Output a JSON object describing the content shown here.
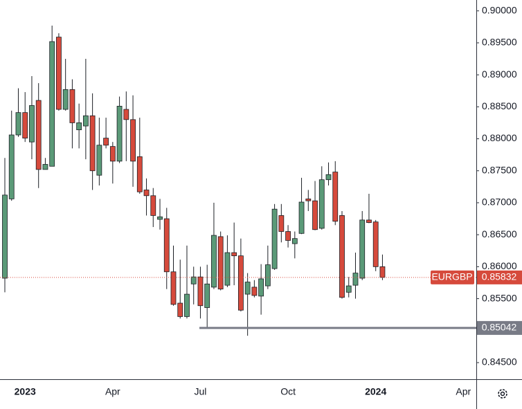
{
  "chart_data": {
    "type": "candlestick",
    "symbol": "EURGBP",
    "categories": [
      null,
      null,
      null,
      "2023",
      null,
      null,
      null,
      null,
      null,
      null,
      null,
      null,
      null,
      null,
      null,
      null,
      "Apr",
      null,
      null,
      null,
      null,
      null,
      null,
      null,
      null,
      null,
      null,
      null,
      null,
      "Jul",
      null,
      null,
      null,
      null,
      null,
      null,
      null,
      null,
      null,
      null,
      null,
      null,
      "Oct",
      null,
      null,
      null,
      null,
      null,
      null,
      null,
      null,
      null,
      null,
      null,
      null,
      "2024",
      null,
      null,
      null,
      null,
      null,
      null,
      null,
      null,
      null,
      null,
      null,
      null,
      "Apr",
      null
    ],
    "open": [
      0.8582,
      0.8706,
      0.8806,
      0.8841,
      0.8795,
      0.886,
      0.8752,
      0.8757,
      0.8959,
      0.8846,
      0.8877,
      0.8814,
      0.882,
      0.8836,
      0.8743,
      0.8801,
      0.8788,
      0.8765,
      0.8846,
      0.883,
      0.8772,
      0.872,
      0.8711,
      0.8674,
      0.8675,
      0.8592,
      0.8543,
      0.8522,
      0.8573,
      0.8584,
      0.8536,
      0.8568,
      0.8647,
      0.8571,
      0.8622,
      0.8617,
      0.8557,
      0.8568,
      0.8554,
      0.857,
      0.8597,
      0.868,
      0.8655,
      0.8636,
      0.8652,
      0.8706,
      0.8703,
      0.866,
      0.8736,
      0.8748,
      0.868,
      0.856,
      0.8571,
      0.8582,
      0.8673,
      0.867,
      0.86,
      null,
      null,
      null,
      null,
      null,
      null,
      null,
      null,
      null,
      null,
      null,
      null,
      null
    ],
    "high": [
      0.877,
      0.8844,
      0.8879,
      0.8873,
      0.8898,
      0.8887,
      0.877,
      0.8977,
      0.8965,
      0.8925,
      0.8893,
      0.8855,
      0.8925,
      0.8871,
      0.8833,
      0.8833,
      0.8795,
      0.8866,
      0.8874,
      0.8868,
      0.8833,
      0.8738,
      0.8723,
      0.8706,
      0.8692,
      0.8633,
      0.8611,
      0.8633,
      0.86,
      0.86,
      0.8603,
      0.87,
      0.8655,
      0.8649,
      0.8669,
      0.8644,
      0.859,
      0.8579,
      0.8604,
      0.8633,
      0.8698,
      0.8698,
      0.8665,
      0.8655,
      0.8739,
      0.872,
      0.8734,
      0.8757,
      0.8763,
      0.8765,
      0.8687,
      0.8584,
      0.8622,
      0.8687,
      0.8714,
      0.8673,
      0.8619,
      null,
      null,
      null,
      null,
      null,
      null,
      null,
      null,
      null,
      null,
      null,
      null,
      null
    ],
    "low": [
      0.856,
      0.8703,
      0.8803,
      0.8795,
      0.8768,
      0.8723,
      0.8752,
      0.8757,
      0.8844,
      0.8844,
      0.8785,
      0.8785,
      0.8768,
      0.872,
      0.8727,
      0.8785,
      0.873,
      0.8762,
      0.8765,
      0.8725,
      0.8714,
      0.868,
      0.8662,
      0.8658,
      0.8565,
      0.8539,
      0.8519,
      0.8519,
      0.8541,
      0.8519,
      0.8503,
      0.8565,
      0.8563,
      0.8568,
      0.8571,
      0.853,
      0.8492,
      0.8552,
      0.8525,
      0.8565,
      0.8595,
      0.8638,
      0.863,
      0.8613,
      0.8651,
      0.8687,
      0.8657,
      0.8658,
      0.8727,
      0.8665,
      0.855,
      0.8552,
      0.855,
      0.8579,
      0.8668,
      0.8593,
      0.8579,
      null,
      null,
      null,
      null,
      null,
      null,
      null,
      null,
      null,
      null,
      null,
      null,
      null
    ],
    "close": [
      0.8712,
      0.8806,
      0.8841,
      0.8801,
      0.8852,
      0.8752,
      0.876,
      0.8952,
      0.8846,
      0.8877,
      0.8825,
      0.8825,
      0.8836,
      0.875,
      0.879,
      0.879,
      0.8765,
      0.8851,
      0.883,
      0.8765,
      0.8717,
      0.8711,
      0.868,
      0.8678,
      0.8592,
      0.8541,
      0.8522,
      0.8557,
      0.8584,
      0.8539,
      0.8573,
      0.8649,
      0.8565,
      0.8622,
      0.8617,
      0.8532,
      0.8576,
      0.8555,
      0.8581,
      0.8603,
      0.869,
      0.8655,
      0.8641,
      0.8644,
      0.8701,
      0.8703,
      0.8658,
      0.8736,
      0.8744,
      0.8671,
      0.8552,
      0.857,
      0.859,
      0.8673,
      0.8669,
      0.86,
      0.85832,
      null,
      null,
      null,
      null,
      null,
      null,
      null,
      null,
      null,
      null,
      null,
      null,
      null
    ],
    "up_color": "#5b9a78",
    "down_color": "#d64a3c",
    "last_price": 0.85832,
    "level": 0.85042,
    "ylim": [
      0.8424,
      0.9017
    ],
    "yticks": [
      {
        "value": 0.845,
        "label": "0.84500"
      },
      {
        "value": 0.85,
        "label": "0.85000"
      },
      {
        "value": 0.855,
        "label": "0.85500"
      },
      {
        "value": 0.86,
        "label": "0.86000"
      },
      {
        "value": 0.865,
        "label": "0.86500"
      },
      {
        "value": 0.87,
        "label": "0.87000"
      },
      {
        "value": 0.875,
        "label": "0.87500"
      },
      {
        "value": 0.88,
        "label": "0.88000"
      },
      {
        "value": 0.885,
        "label": "0.88500"
      },
      {
        "value": 0.89,
        "label": "0.89000"
      },
      {
        "value": 0.895,
        "label": "0.89500"
      },
      {
        "value": 0.9,
        "label": "0.90000"
      }
    ],
    "grid": false
  }
}
